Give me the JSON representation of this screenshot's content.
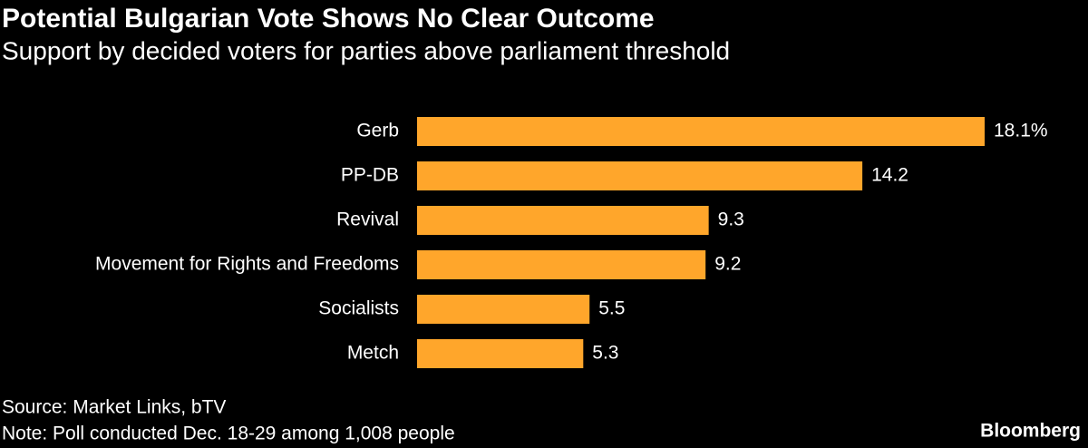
{
  "chart_data": {
    "type": "bar",
    "orientation": "horizontal",
    "title": "Potential Bulgarian Vote Shows No Clear Outcome",
    "subtitle": "Support by decided voters for parties above parliament threshold",
    "categories": [
      "Gerb",
      "PP-DB",
      "Revival",
      "Movement for Rights and Freedoms",
      "Socialists",
      "Metch"
    ],
    "values": [
      18.1,
      14.2,
      9.3,
      9.2,
      5.5,
      5.3
    ],
    "value_labels": [
      "18.1%",
      "14.2",
      "9.3",
      "9.2",
      "5.5",
      "5.3"
    ],
    "color": "#ffa62b",
    "source": "Source: Market Links, bTV",
    "note": "Note: Poll conducted Dec. 18-29 among 1,008 people",
    "logo": "Bloomberg"
  }
}
